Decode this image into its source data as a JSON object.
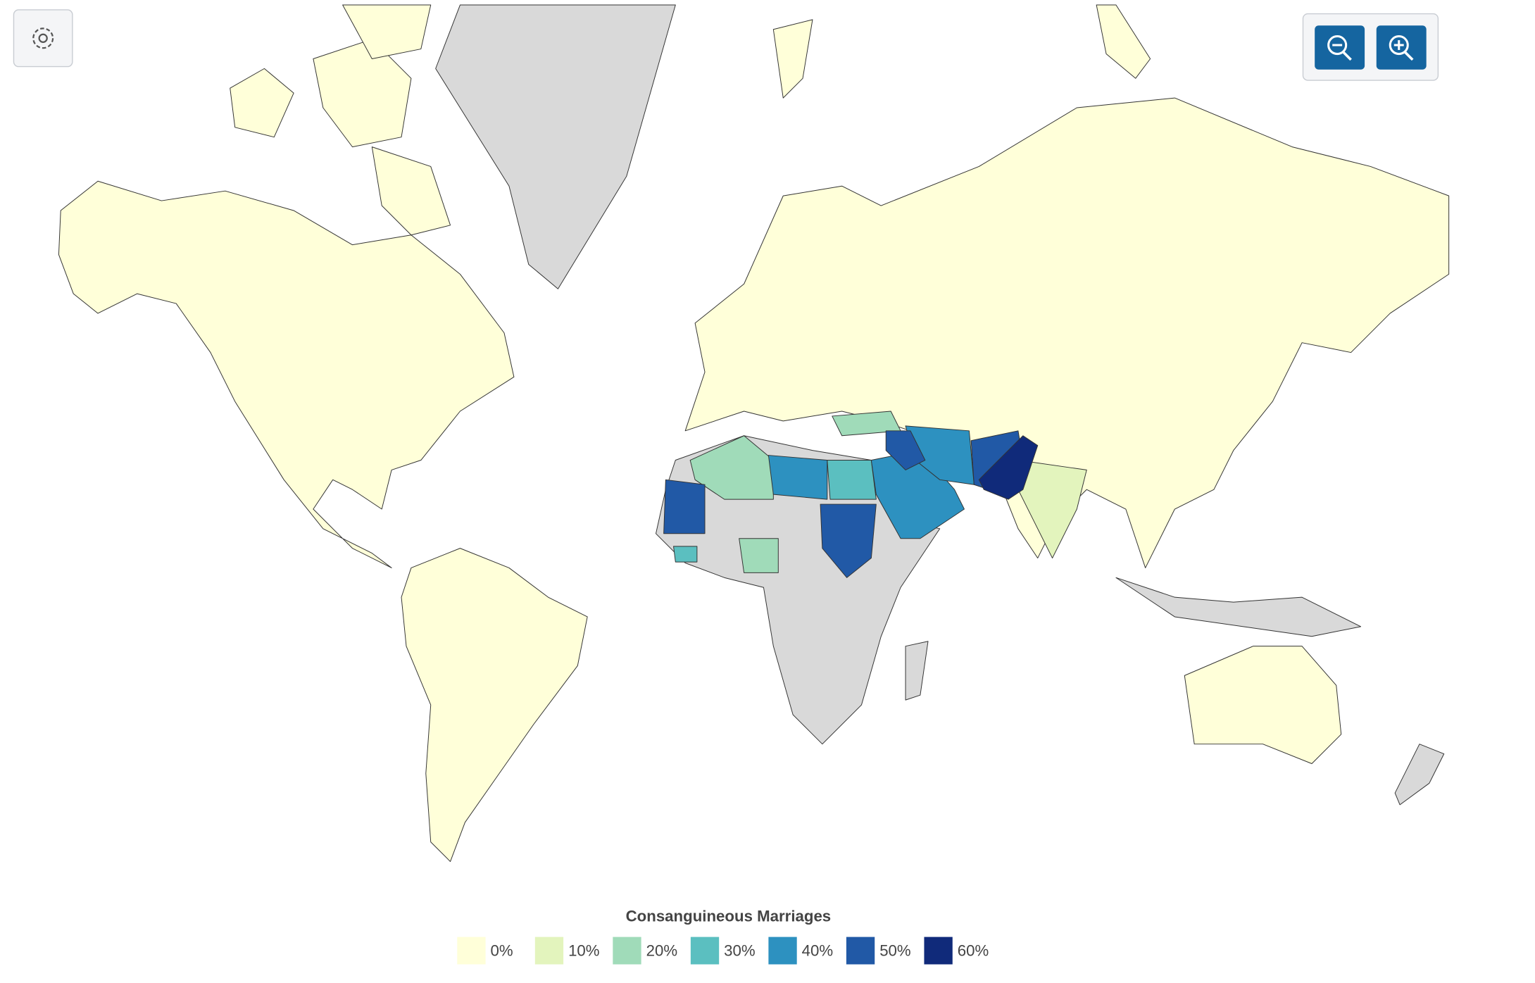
{
  "legend": {
    "title": "Consanguineous Marriages",
    "items": [
      {
        "label": "0%",
        "color": "#ffffd9"
      },
      {
        "label": "10%",
        "color": "#e3f4bd"
      },
      {
        "label": "20%",
        "color": "#a0dbb9"
      },
      {
        "label": "30%",
        "color": "#5bbfc0"
      },
      {
        "label": "40%",
        "color": "#2d91c0"
      },
      {
        "label": "50%",
        "color": "#2159a6"
      },
      {
        "label": "60%",
        "color": "#102a7a"
      }
    ]
  }
}
